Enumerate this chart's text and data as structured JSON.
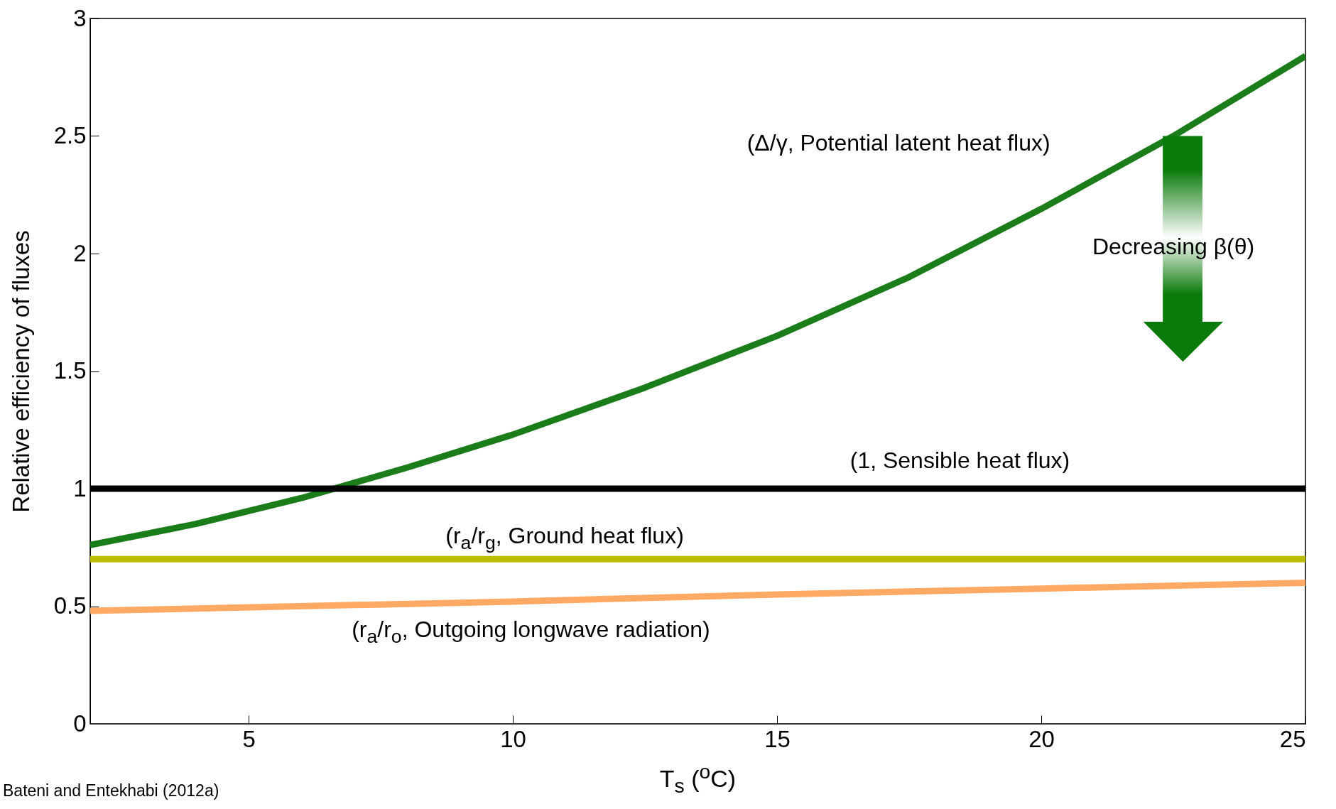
{
  "chart_data": {
    "type": "line",
    "xlabel": "T$_{s}$ ($^{o}$C)",
    "ylabel": "Relative efficiency of fluxes",
    "xlim": [
      2,
      25
    ],
    "ylim": [
      0,
      3
    ],
    "xticks": [
      5,
      10,
      15,
      20,
      25
    ],
    "yticks": [
      0,
      0.5,
      1,
      1.5,
      2,
      2.5,
      3
    ],
    "series": [
      {
        "color": "#1a7d1a",
        "x": [
          2,
          4,
          6,
          8,
          10,
          12.5,
          15,
          17.5,
          20,
          22.5,
          25
        ],
        "values": [
          0.76,
          0.85,
          0.96,
          1.09,
          1.23,
          1.43,
          1.65,
          1.9,
          2.19,
          2.5,
          2.84
        ]
      },
      {
        "color": "#000000",
        "x": [
          2,
          25
        ],
        "values": [
          1,
          1
        ]
      },
      {
        "color": "#bcbc00",
        "x": [
          2,
          25
        ],
        "values": [
          0.7,
          0.7
        ]
      },
      {
        "color": "#ffa964",
        "x": [
          2,
          10,
          15,
          20,
          25
        ],
        "values": [
          0.48,
          0.52,
          0.55,
          0.575,
          0.6
        ]
      }
    ],
    "annotations": [
      "(Δ/γ, Potential latent heat flux)",
      "(1, Sensible heat flux)",
      "(r$_{a}$/r$_{g}$, Ground heat flux)",
      "(r$_{a}$/r$_{o}$, Outgoing longwave radiation)",
      "Decreasing β(θ)",
      "Bateni and Entekhabi (2012a)"
    ]
  }
}
